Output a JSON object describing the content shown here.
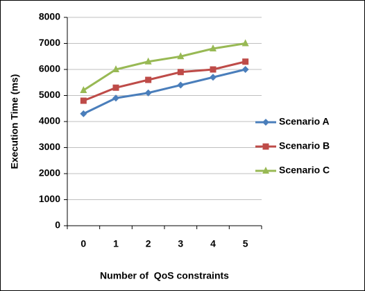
{
  "chart_data": {
    "type": "line",
    "x_label": "Number of  QoS constraints",
    "y_label": "Execution Time (ms)",
    "categories": [
      "0",
      "1",
      "2",
      "3",
      "4",
      "5"
    ],
    "series": [
      {
        "name": "Scenario A",
        "color": "#4a7ebb",
        "marker": "diamond",
        "values": [
          4300,
          4900,
          5100,
          5400,
          5700,
          6000
        ]
      },
      {
        "name": "Scenario B",
        "color": "#be4b48",
        "marker": "square",
        "values": [
          4800,
          5300,
          5600,
          5900,
          6000,
          6300
        ]
      },
      {
        "name": "Scenario C",
        "color": "#98b954",
        "marker": "triangle",
        "values": [
          5200,
          6000,
          6300,
          6500,
          6800,
          7000
        ]
      }
    ],
    "ylim": [
      0,
      8000
    ],
    "yticks": [
      0,
      1000,
      2000,
      3000,
      4000,
      5000,
      6000,
      7000,
      8000
    ],
    "grid": true,
    "legend": "right"
  }
}
